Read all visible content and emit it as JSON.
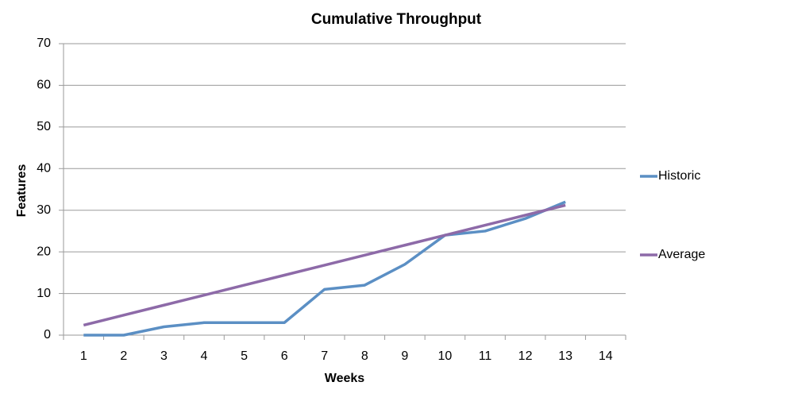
{
  "chart_data": {
    "type": "line",
    "title": "Cumulative Throughput",
    "x_label": "Weeks",
    "y_label": "Features",
    "categories": [
      "1",
      "2",
      "3",
      "4",
      "5",
      "6",
      "7",
      "8",
      "9",
      "10",
      "11",
      "12",
      "13",
      "14"
    ],
    "series": [
      {
        "name": "Historic",
        "color": "#5b8fc4",
        "values": [
          0,
          0,
          2,
          3,
          3,
          3,
          11,
          12,
          17,
          24,
          25,
          28,
          32,
          null
        ]
      },
      {
        "name": "Average",
        "color": "#8d6aa8",
        "values": [
          2.4,
          4.8,
          7.2,
          9.6,
          12,
          14.4,
          16.8,
          19.2,
          21.6,
          24,
          26.4,
          28.8,
          31.2,
          null
        ]
      }
    ],
    "ylim": [
      0,
      70
    ],
    "yticks": [
      0,
      10,
      20,
      30,
      40,
      50,
      60,
      70
    ],
    "grid": true,
    "legend": "right"
  }
}
